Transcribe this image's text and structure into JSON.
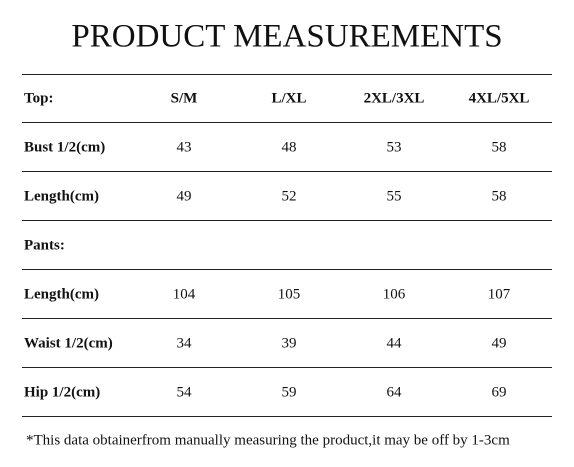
{
  "header": {
    "title": "PRODUCT MEASUREMENTS"
  },
  "table": {
    "header": [
      "Top:",
      "S/M",
      "L/XL",
      "2XL/3XL",
      "4XL/5XL"
    ],
    "rows": [
      [
        "Bust 1/2(cm)",
        43,
        48,
        53,
        58
      ],
      [
        "Length(cm)",
        49,
        52,
        55,
        58
      ],
      [
        "Pants:"
      ],
      [
        "Length(cm)",
        104,
        105,
        106,
        107
      ],
      [
        "Waist 1/2(cm)",
        34,
        39,
        44,
        49
      ],
      [
        "Hip 1/2(cm)",
        54,
        59,
        64,
        69
      ]
    ]
  },
  "footnote": "*This data obtainerfrom manually measuring the product,it may be off by 1-3cm"
}
